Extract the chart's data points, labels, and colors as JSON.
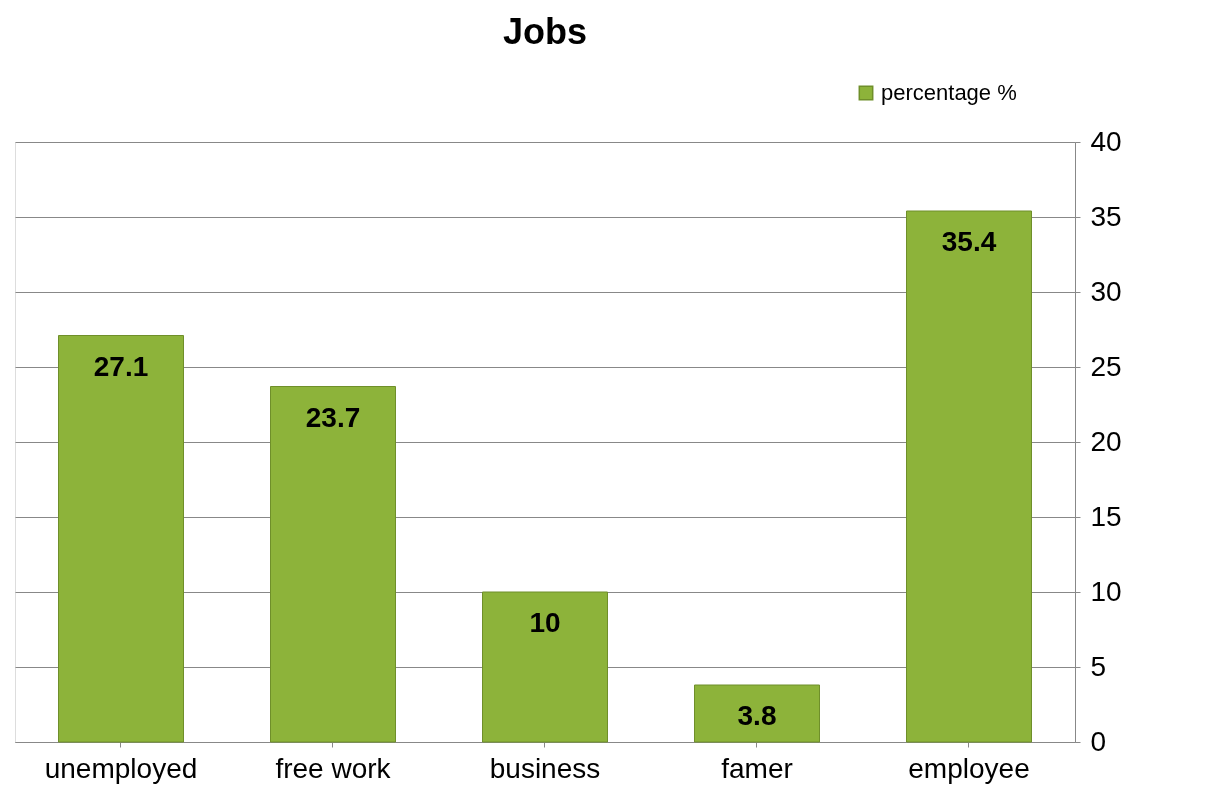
{
  "chart_data": {
    "type": "bar",
    "title": "Jobs",
    "categories": [
      "unemployed",
      "free work",
      "business",
      "famer",
      "employee"
    ],
    "series": [
      {
        "name": "percentage %",
        "color": "#8db33a",
        "values": [
          27.1,
          23.7,
          10,
          3.8,
          35.4
        ]
      }
    ],
    "ylim": [
      0,
      40
    ],
    "yticks": [
      0,
      5,
      10,
      15,
      20,
      25,
      30,
      35,
      40
    ],
    "grid": "y",
    "legend": "top right",
    "data_labels": true
  }
}
